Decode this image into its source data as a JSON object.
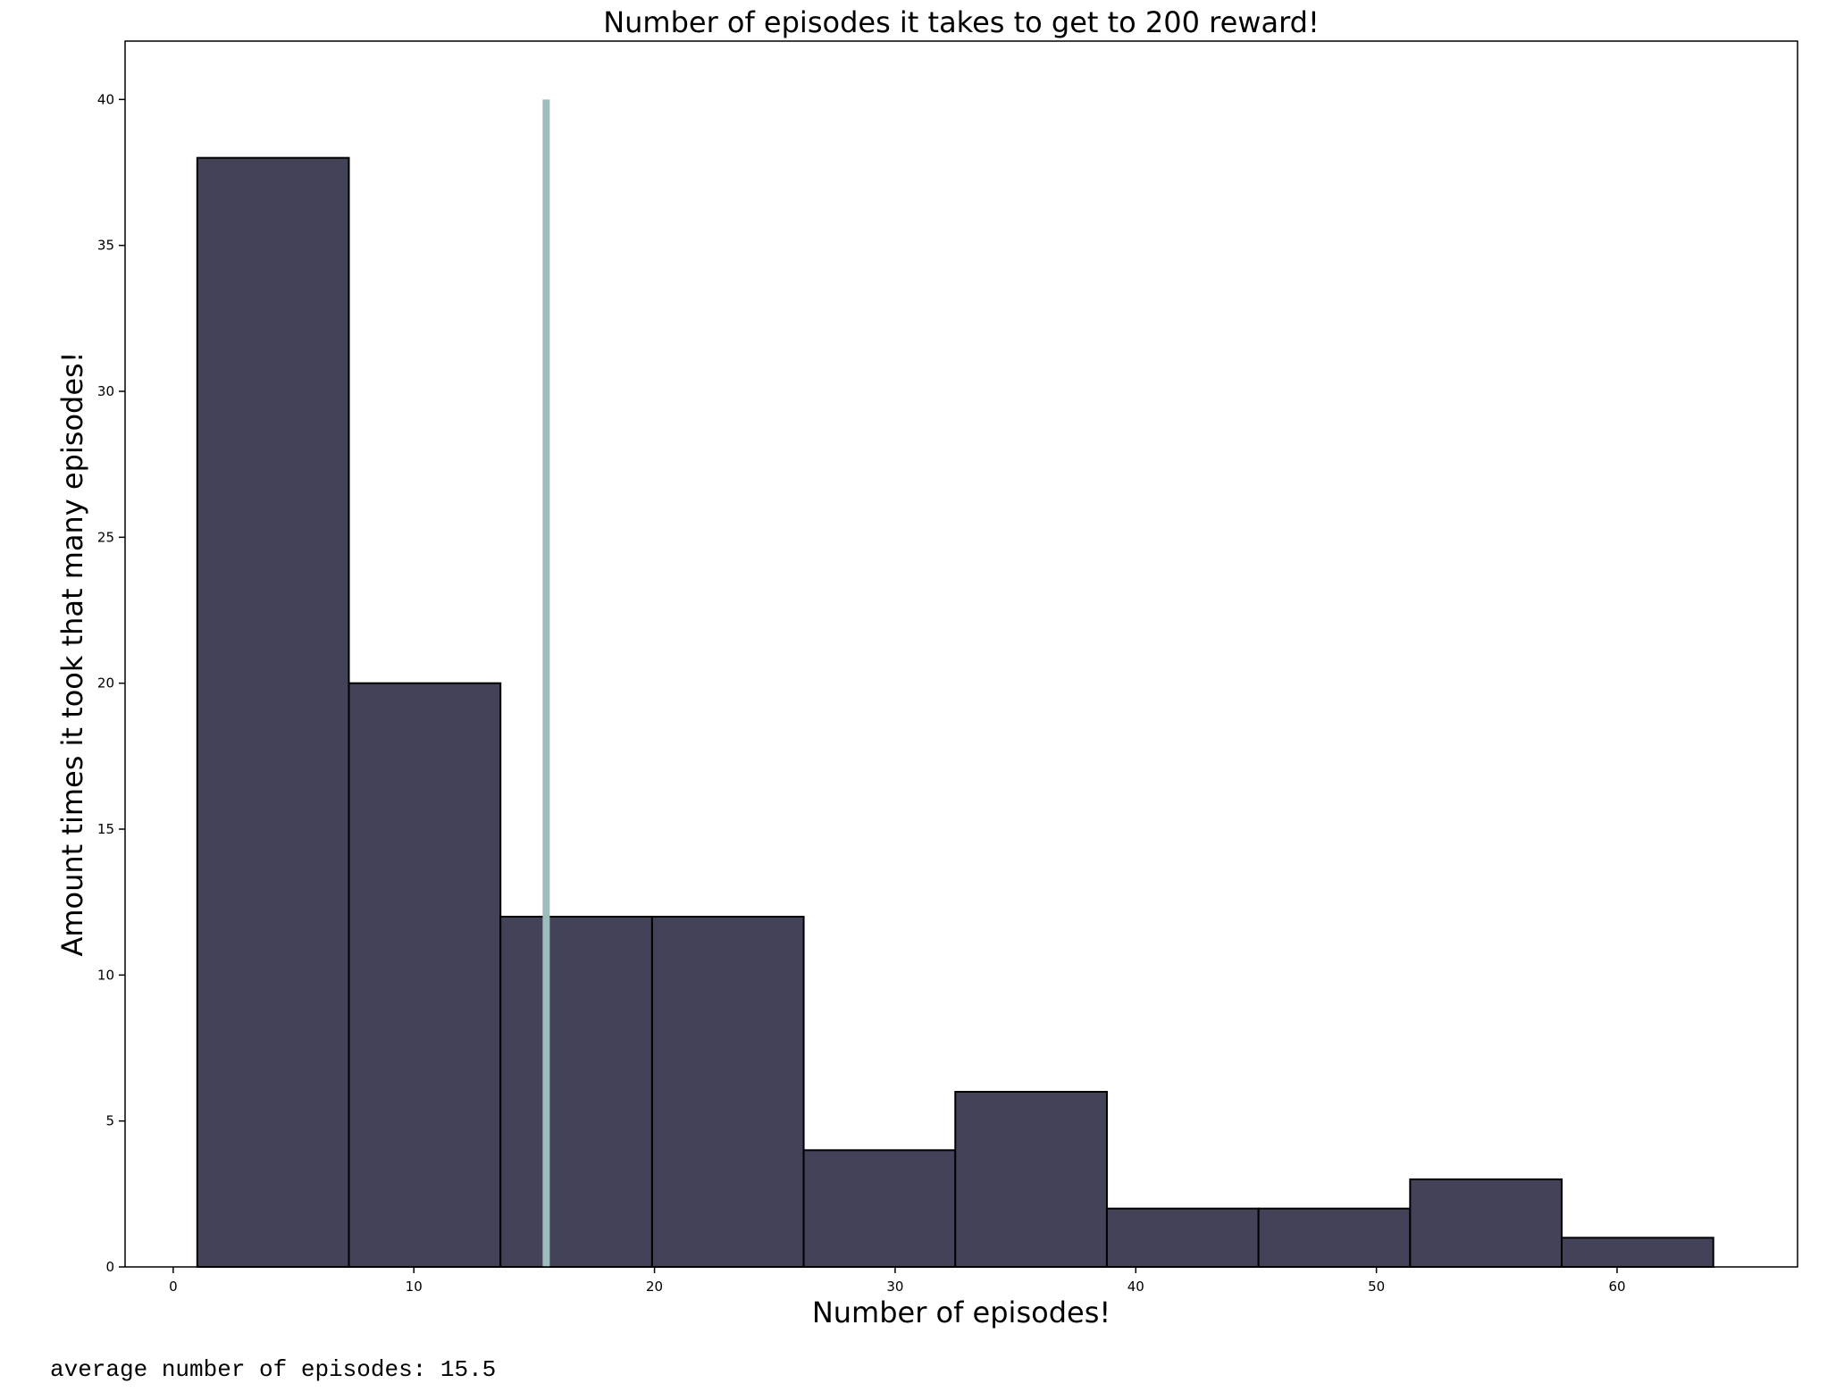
{
  "chart_data": {
    "type": "bar",
    "title": "Number of episodes it takes to get to 200 reward!",
    "xlabel": "Number of episodes!",
    "ylabel": "Amount times it took that many episodes!",
    "xlim": [
      -2,
      67.5
    ],
    "ylim": [
      0,
      42
    ],
    "xticks": [
      0,
      10,
      20,
      30,
      40,
      50,
      60
    ],
    "yticks": [
      0,
      5,
      10,
      15,
      20,
      25,
      30,
      35,
      40
    ],
    "bin_edges": [
      1,
      7.3,
      13.6,
      19.9,
      26.2,
      32.5,
      38.8,
      45.1,
      51.4,
      57.7,
      64
    ],
    "values": [
      38,
      20,
      12,
      12,
      4,
      6,
      2,
      2,
      3,
      1
    ],
    "mean_line": {
      "x": 15.5,
      "ymax": 40
    },
    "grid": false,
    "colors": {
      "bar_fill": "#424259",
      "bar_edge": "#000000",
      "mean_line": "#9ebcbc"
    }
  },
  "output": {
    "text": "average number of episodes: 15.5"
  }
}
